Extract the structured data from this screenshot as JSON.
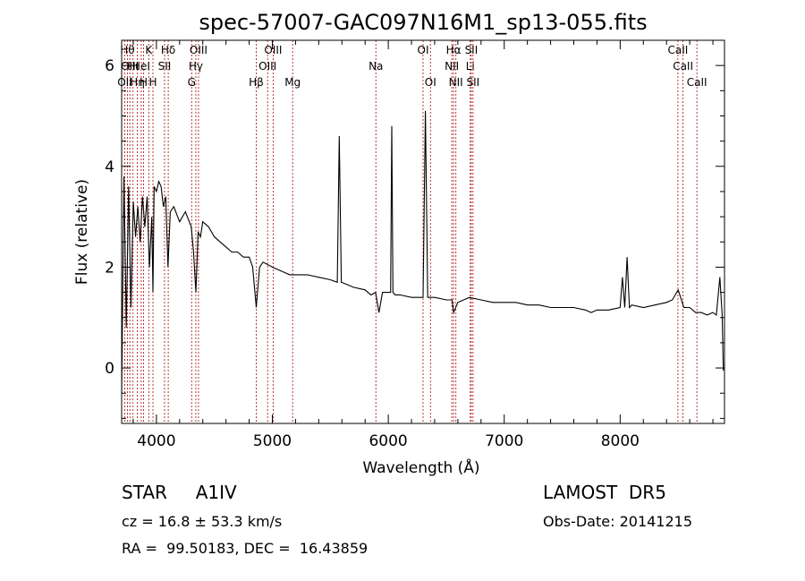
{
  "chart_data": {
    "type": "line",
    "title": "spec-57007-GAC097N16M1_sp13-055.fits",
    "xlabel": "Wavelength (Å)",
    "ylabel": "Flux (relative)",
    "xlim": [
      3700,
      8900
    ],
    "ylim": [
      -1.1,
      6.5
    ],
    "x_ticks": [
      4000,
      5000,
      6000,
      7000,
      8000
    ],
    "y_ticks": [
      0,
      2,
      4,
      6
    ],
    "series": [
      {
        "x": [
          3700,
          3720,
          3740,
          3760,
          3780,
          3800,
          3820,
          3840,
          3860,
          3880,
          3900,
          3920,
          3940,
          3960,
          3970,
          3980,
          4000,
          4020,
          4040,
          4060,
          4080,
          4100,
          4120,
          4150,
          4200,
          4250,
          4300,
          4320,
          4340,
          4360,
          4380,
          4400,
          4450,
          4500,
          4550,
          4600,
          4650,
          4700,
          4750,
          4800,
          4830,
          4861,
          4890,
          4920,
          5000,
          5050,
          5100,
          5150,
          5200,
          5300,
          5400,
          5500,
          5560,
          5577,
          5595,
          5650,
          5700,
          5800,
          5850,
          5890,
          5920,
          5950,
          6000,
          6020,
          6030,
          6040,
          6060,
          6100,
          6200,
          6280,
          6300,
          6320,
          6340,
          6360,
          6400,
          6500,
          6550,
          6563,
          6600,
          6700,
          6800,
          6900,
          7000,
          7100,
          7200,
          7300,
          7400,
          7500,
          7600,
          7700,
          7750,
          7800,
          7900,
          8000,
          8020,
          8040,
          8060,
          8080,
          8100,
          8200,
          8300,
          8400,
          8450,
          8500,
          8550,
          8600,
          8650,
          8700,
          8750,
          8800,
          8830,
          8860,
          8880,
          8890
        ],
        "y": [
          -0.5,
          3.8,
          0.8,
          3.6,
          1.2,
          3.3,
          2.6,
          3.2,
          2.5,
          3.4,
          2.8,
          3.4,
          2.0,
          3.0,
          1.5,
          3.6,
          3.5,
          3.7,
          3.6,
          3.2,
          3.4,
          2.0,
          3.1,
          3.2,
          2.9,
          3.1,
          2.8,
          2.3,
          1.5,
          2.7,
          2.6,
          2.9,
          2.8,
          2.6,
          2.5,
          2.4,
          2.3,
          2.3,
          2.2,
          2.2,
          2.0,
          1.2,
          2.0,
          2.1,
          2.0,
          1.95,
          1.9,
          1.85,
          1.85,
          1.85,
          1.8,
          1.75,
          1.7,
          4.6,
          1.7,
          1.65,
          1.6,
          1.55,
          1.45,
          1.5,
          1.1,
          1.5,
          1.5,
          1.5,
          4.8,
          1.5,
          1.45,
          1.45,
          1.4,
          1.4,
          1.4,
          5.1,
          1.4,
          1.4,
          1.4,
          1.35,
          1.35,
          1.1,
          1.3,
          1.4,
          1.35,
          1.3,
          1.3,
          1.3,
          1.25,
          1.25,
          1.2,
          1.2,
          1.2,
          1.15,
          1.1,
          1.15,
          1.15,
          1.2,
          1.8,
          1.2,
          2.2,
          1.2,
          1.25,
          1.2,
          1.25,
          1.3,
          1.35,
          1.55,
          1.2,
          1.2,
          1.1,
          1.1,
          1.05,
          1.1,
          1.05,
          1.8,
          1.05,
          -0.05
        ]
      }
    ],
    "lines": [
      {
        "x": 3727,
        "label": "OII",
        "row": 2
      },
      {
        "x": 3750,
        "label": "Hθ",
        "row": 0
      },
      {
        "x": 3771,
        "label": "OIII",
        "row": 1
      },
      {
        "x": 3798,
        "label": "Hι",
        "row": 1
      },
      {
        "x": 3835,
        "label": "Hη",
        "row": 2
      },
      {
        "x": 3869,
        "label": "HeI",
        "row": 1
      },
      {
        "x": 3889,
        "label": "H",
        "row": 2
      },
      {
        "x": 3934,
        "label": "K",
        "row": 0
      },
      {
        "x": 3970,
        "label": "H",
        "row": 2
      },
      {
        "x": 4070,
        "label": "SII",
        "row": 1
      },
      {
        "x": 4102,
        "label": "Hδ",
        "row": 0
      },
      {
        "x": 4304,
        "label": "G",
        "row": 2
      },
      {
        "x": 4340,
        "label": "Hγ",
        "row": 1
      },
      {
        "x": 4363,
        "label": "OIII",
        "row": 0
      },
      {
        "x": 4861,
        "label": "Hβ",
        "row": 2
      },
      {
        "x": 4959,
        "label": "OIII",
        "row": 1
      },
      {
        "x": 5007,
        "label": "OIII",
        "row": 0
      },
      {
        "x": 5175,
        "label": "Mg",
        "row": 2
      },
      {
        "x": 5893,
        "label": "Na",
        "row": 1
      },
      {
        "x": 6300,
        "label": "OI",
        "row": 0
      },
      {
        "x": 6364,
        "label": "OI",
        "row": 2
      },
      {
        "x": 6548,
        "label": "NII",
        "row": 1
      },
      {
        "x": 6563,
        "label": "Hα",
        "row": 0
      },
      {
        "x": 6583,
        "label": "NII",
        "row": 2
      },
      {
        "x": 6707,
        "label": "Li",
        "row": 1
      },
      {
        "x": 6716,
        "label": "SII",
        "row": 0
      },
      {
        "x": 6731,
        "label": "SII",
        "row": 2
      },
      {
        "x": 8498,
        "label": "CaII",
        "row": 0
      },
      {
        "x": 8542,
        "label": "CaII",
        "row": 1
      },
      {
        "x": 8662,
        "label": "CaII",
        "row": 2
      }
    ],
    "grid": false,
    "line_color": "#000000",
    "marker_color": "#b22222"
  },
  "info": {
    "class_line": "STAR     A1IV",
    "survey": "LAMOST  DR5",
    "cz": "cz = 16.8 ± 53.3 km/s",
    "obs_date": "Obs-Date: 20141215",
    "coords": "RA =  99.50183, DEC =  16.43859"
  }
}
